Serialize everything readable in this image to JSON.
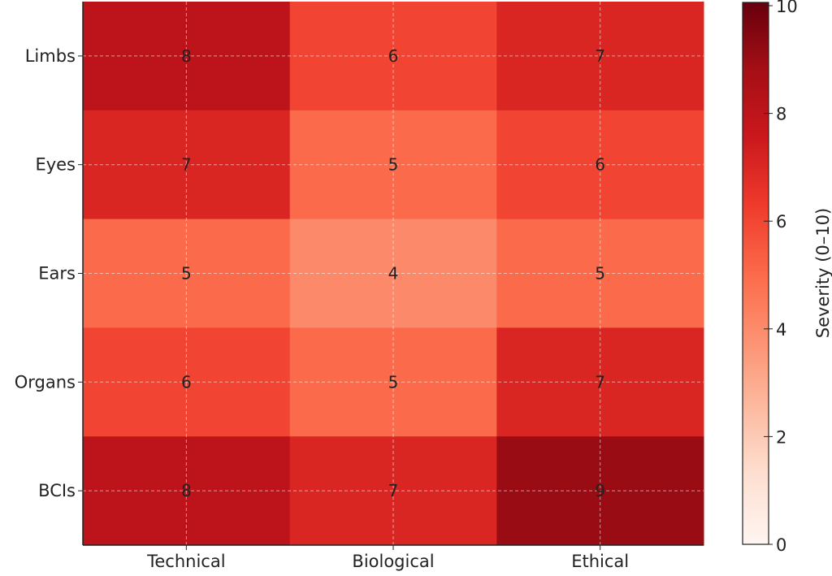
{
  "chart_data": {
    "type": "heatmap",
    "title": "",
    "xlabel": "",
    "ylabel": "",
    "x_categories": [
      "Technical",
      "Biological",
      "Ethical"
    ],
    "y_categories": [
      "Limbs",
      "Eyes",
      "Ears",
      "Organs",
      "BCIs"
    ],
    "values": [
      [
        8,
        6,
        7
      ],
      [
        7,
        5,
        6
      ],
      [
        5,
        4,
        5
      ],
      [
        6,
        5,
        7
      ],
      [
        8,
        7,
        9
      ]
    ],
    "grid": true,
    "colormap": "Reds",
    "vmin": 0,
    "vmax": 10,
    "colorbar": {
      "label": "Severity (0–10)",
      "ticks": [
        0,
        2,
        4,
        6,
        8,
        10
      ],
      "placement": "right"
    },
    "colormap_stops": [
      "#fff5f0",
      "#fee0d2",
      "#fcbba1",
      "#fc9272",
      "#fb6a4a",
      "#ef3b2c",
      "#cb181d",
      "#a50f15",
      "#67000d"
    ]
  }
}
